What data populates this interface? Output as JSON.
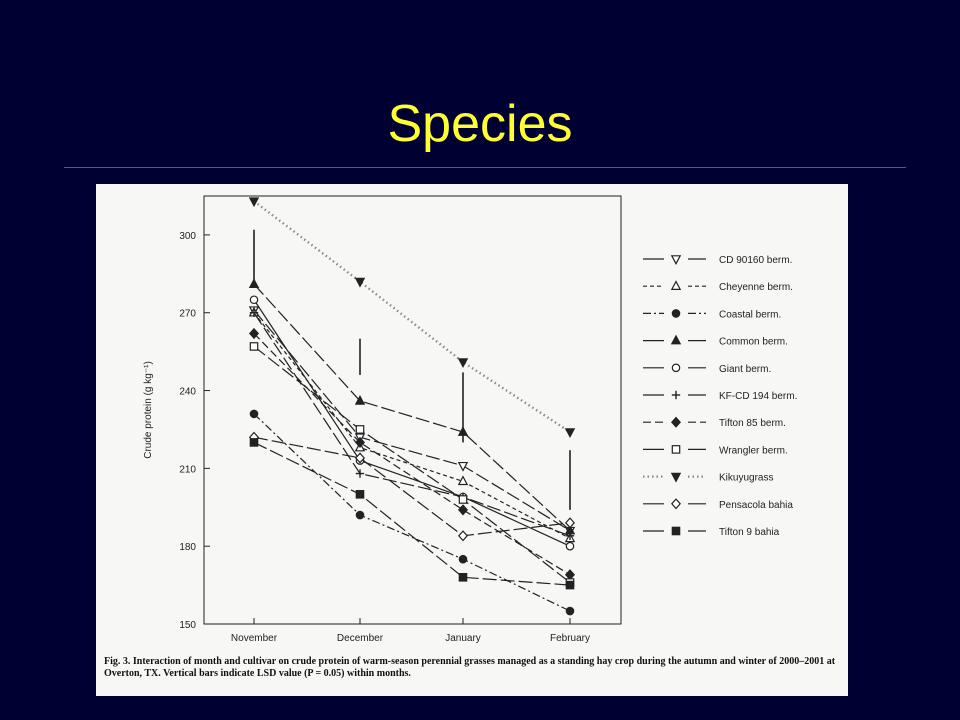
{
  "slide": {
    "title": "Species"
  },
  "figure": {
    "caption_label": "Fig. 3.",
    "caption_text": "Interaction of month and cultivar on crude protein of warm-season perennial grasses managed as a standing hay crop during the autumn and winter of 2000–2001 at Overton, TX. Vertical bars indicate LSD value (P = 0.05) within months."
  },
  "colors": {
    "background": "#000033",
    "title": "#ffff33",
    "rule": "#2f7f2f",
    "figure_bg": "#f7f7f5",
    "ink": "#222222",
    "kikuyu_dots": "#8a8a8a"
  },
  "chart_data": {
    "type": "line",
    "categories": [
      "November",
      "December",
      "January",
      "February"
    ],
    "ylabel": "Crude protein (g kg⁻¹)",
    "xlabel": "",
    "ylim": [
      150,
      315
    ],
    "yticks": [
      150,
      180,
      210,
      240,
      270,
      300
    ],
    "grid": false,
    "legend_position": "right",
    "lsd_bars": [
      {
        "month": "November",
        "range": [
          282,
          302
        ]
      },
      {
        "month": "December",
        "range": [
          246,
          260
        ]
      },
      {
        "month": "January",
        "range": [
          220,
          247
        ]
      },
      {
        "month": "February",
        "range": [
          194,
          217
        ]
      }
    ],
    "series": [
      {
        "name": "CD 90160 berm.",
        "marker": "triangle-down-open",
        "dash": "long",
        "values": [
          271,
          222,
          211,
          186
        ]
      },
      {
        "name": "Cheyenne berm.",
        "marker": "triangle-up-open",
        "dash": "short",
        "values": [
          270,
          218,
          205,
          183
        ]
      },
      {
        "name": "Coastal berm.",
        "marker": "circle-filled",
        "dash": "dashdot",
        "values": [
          231,
          192,
          175,
          155
        ]
      },
      {
        "name": "Common berm.",
        "marker": "triangle-up-filled",
        "dash": "long",
        "values": [
          281,
          236,
          224,
          186
        ]
      },
      {
        "name": "Giant berm.",
        "marker": "circle-open",
        "dash": "solid",
        "values": [
          275,
          213,
          199,
          180
        ]
      },
      {
        "name": "KF-CD 194 berm.",
        "marker": "plus",
        "dash": "long",
        "values": [
          270,
          208,
          199,
          184
        ]
      },
      {
        "name": "Tifton 85 berm.",
        "marker": "diamond-filled",
        "dash": "dash",
        "values": [
          262,
          220,
          194,
          169
        ]
      },
      {
        "name": "Wrangler berm.",
        "marker": "square-open",
        "dash": "long",
        "values": [
          257,
          225,
          198,
          166
        ]
      },
      {
        "name": "Kikuyugrass",
        "marker": "triangle-down-filled",
        "dash": "dotted",
        "values": [
          313,
          282,
          251,
          224
        ]
      },
      {
        "name": "Pensacola bahia",
        "marker": "diamond-open",
        "dash": "long",
        "values": [
          222,
          214,
          184,
          189
        ]
      },
      {
        "name": "Tifton 9 bahia",
        "marker": "square-filled",
        "dash": "long",
        "values": [
          220,
          200,
          168,
          165
        ]
      }
    ]
  }
}
